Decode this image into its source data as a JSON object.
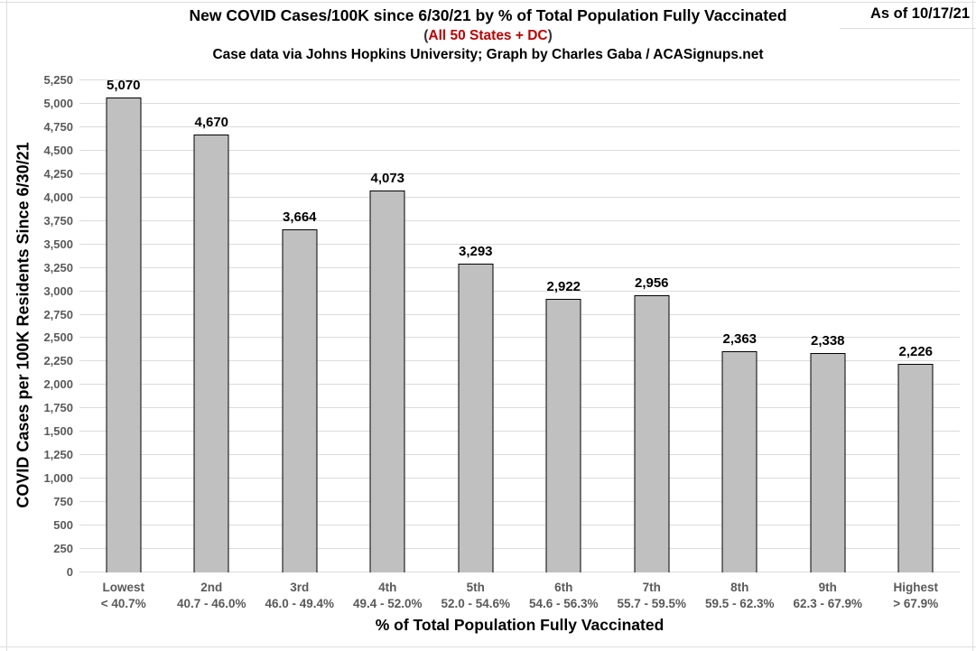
{
  "header": {
    "title": "New COVID Cases/100K since 6/30/21 by % of Total Population Fully Vaccinated",
    "subtitle_paren_open": "(",
    "subtitle_red": "All 50 States + DC",
    "subtitle_paren_close": ")",
    "credit": "Case data via Johns Hopkins University; Graph by Charles Gaba / ACASignups.net",
    "as_of": "As of 10/17/21"
  },
  "colors": {
    "bar_fill": "#C0C0C0",
    "bar_border": "#000000",
    "gridline": "#DCDCDC",
    "axis_tick_text": "#595959",
    "title_text": "#000000",
    "accent_red": "#C00000",
    "background": "#FFFFFF"
  },
  "chart_data": {
    "type": "bar",
    "title": "New COVID Cases/100K since 6/30/21 by % of Total Population Fully Vaccinated",
    "subtitle": "(All 50 States + DC)",
    "source_note": "Case data via Johns Hopkins University; Graph by Charles Gaba / ACASignups.net",
    "as_of": "As of 10/17/21",
    "xlabel": "% of Total Population Fully Vaccinated",
    "ylabel": "COVID Cases per 100K Residents Since 6/30/21",
    "ylim": [
      0,
      5250
    ],
    "ytick_step": 250,
    "ytick_values": [
      0,
      250,
      500,
      750,
      1000,
      1250,
      1500,
      1750,
      2000,
      2250,
      2500,
      2750,
      3000,
      3250,
      3500,
      3750,
      4000,
      4250,
      4500,
      4750,
      5000,
      5250
    ],
    "ytick_labels": [
      "0",
      "250",
      "500",
      "750",
      "1,000",
      "1,250",
      "1,500",
      "1,750",
      "2,000",
      "2,250",
      "2,500",
      "2,750",
      "3,000",
      "3,250",
      "3,500",
      "3,750",
      "4,000",
      "4,250",
      "4,500",
      "4,750",
      "5,000",
      "5,250"
    ],
    "grid": true,
    "legend_position": "none",
    "categories": [
      {
        "rank": "Lowest",
        "range": "< 40.7%"
      },
      {
        "rank": "2nd",
        "range": "40.7 - 46.0%"
      },
      {
        "rank": "3rd",
        "range": "46.0 - 49.4%"
      },
      {
        "rank": "4th",
        "range": "49.4 - 52.0%"
      },
      {
        "rank": "5th",
        "range": "52.0 - 54.6%"
      },
      {
        "rank": "6th",
        "range": "54.6 - 56.3%"
      },
      {
        "rank": "7th",
        "range": "55.7 - 59.5%"
      },
      {
        "rank": "8th",
        "range": "59.5 - 62.3%"
      },
      {
        "rank": "9th",
        "range": "62.3 - 67.9%"
      },
      {
        "rank": "Highest",
        "range": "> 67.9%"
      }
    ],
    "values": [
      5070,
      4670,
      3664,
      4073,
      3293,
      2922,
      2956,
      2363,
      2338,
      2226
    ],
    "value_labels": [
      "5,070",
      "4,670",
      "3,664",
      "4,073",
      "3,293",
      "2,922",
      "2,956",
      "2,363",
      "2,338",
      "2,226"
    ]
  }
}
